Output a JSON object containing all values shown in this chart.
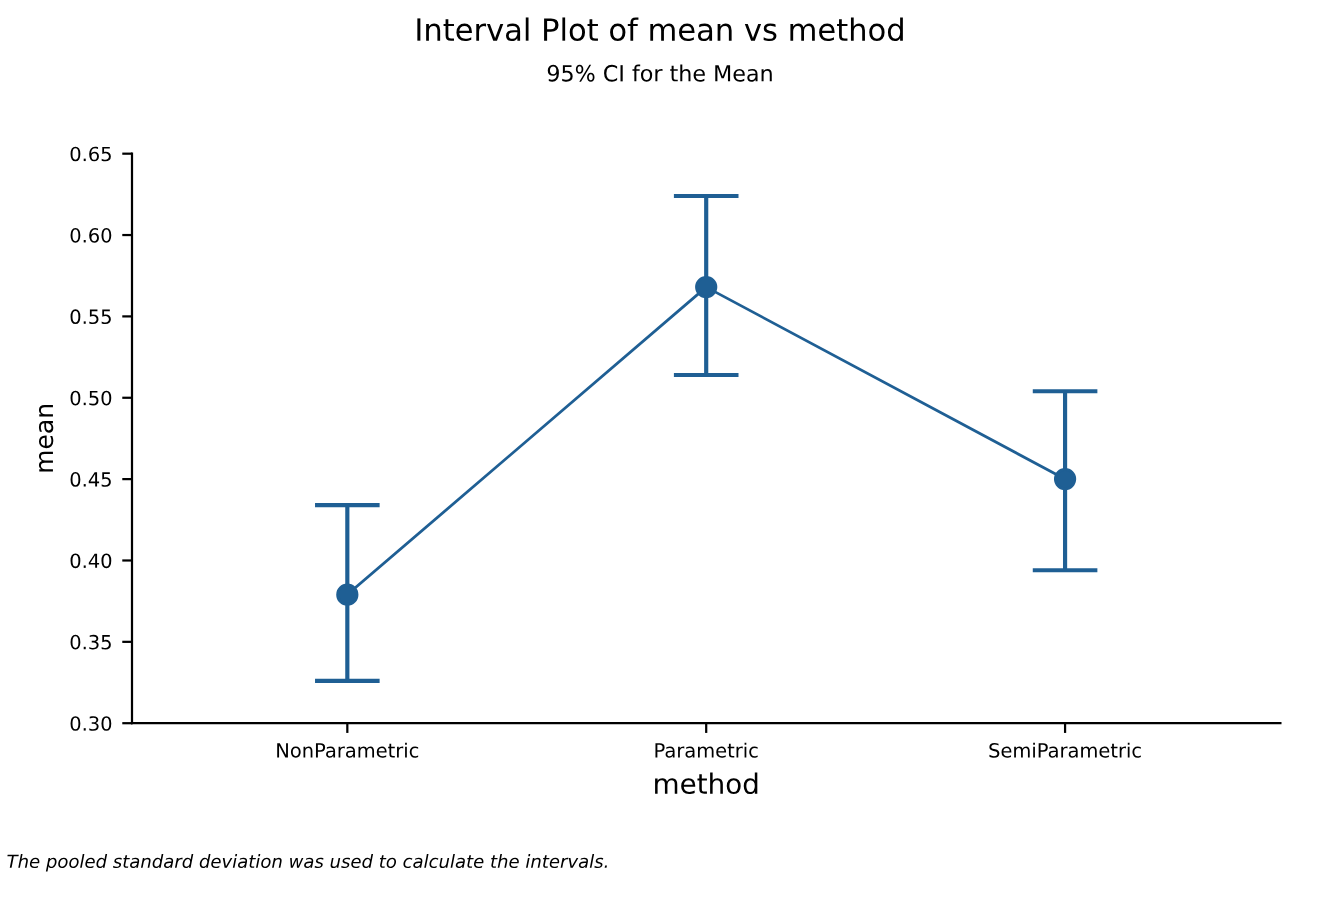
{
  "chart_data": {
    "type": "line",
    "title": "Interval Plot of mean vs method",
    "subtitle": "95% CI for the Mean",
    "xlabel": "method",
    "ylabel": "mean",
    "categories": [
      "NonParametric",
      "Parametric",
      "SemiParametric"
    ],
    "series": [
      {
        "color": "#1f5f94",
        "values": [
          0.379,
          0.568,
          0.45
        ],
        "errors": [
          [
            0.326,
            0.434
          ],
          [
            0.514,
            0.624
          ],
          [
            0.394,
            0.504
          ]
        ]
      }
    ],
    "ylim": [
      0.3,
      0.65
    ],
    "yticks": [
      {
        "value": 0.3,
        "label": "0.30"
      },
      {
        "value": 0.35,
        "label": "0.35"
      },
      {
        "value": 0.4,
        "label": "0.40"
      },
      {
        "value": 0.45,
        "label": "0.45"
      },
      {
        "value": 0.5,
        "label": "0.50"
      },
      {
        "value": 0.55,
        "label": "0.55"
      },
      {
        "value": 0.6,
        "label": "0.60"
      },
      {
        "value": 0.65,
        "label": "0.65"
      }
    ],
    "grid": false,
    "marker": "circle",
    "line_style": "solid",
    "annotations": [
      "The pooled standard deviation was used to calculate the intervals."
    ]
  }
}
